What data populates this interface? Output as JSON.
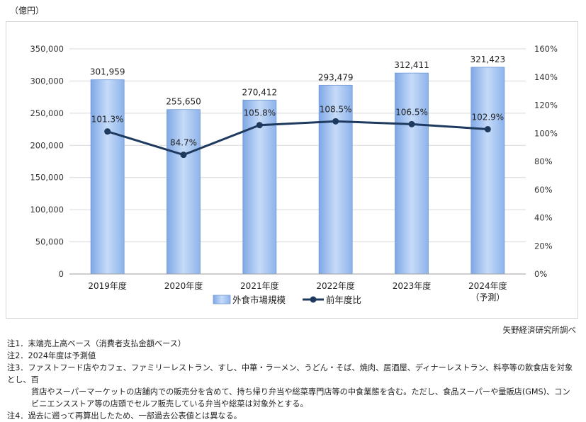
{
  "unit_label": "（億円）",
  "source": "矢野経済研究所調べ",
  "notes": [
    "注1．末端売上高ベース（消費者支払金額ベース）",
    "注2．2024年度は予測値",
    "注3．ファストフード店やカフェ、ファミリーレストラン、すし、中華・ラーメン、うどん・そば、焼肉、居酒屋、ディナーレストラン、料亭等の飲食店を対象とし、百",
    "貨店やスーパーマーケットの店舗内での販売分を含めて、持ち帰り弁当や総菜専門店等の中食業態を含む。ただし、食品スーパーや量販店(GMS)、コン",
    "ビニエンスストア等の店頭でセルフ販売している弁当や総菜は対象外とする。",
    "注4．過去に遡って再算出したため、一部過去公表値とは異なる。"
  ],
  "chart_data": {
    "type": "bar",
    "categories": [
      "2019年度",
      "2020年度",
      "2021年度",
      "2022年度",
      "2023年度",
      "2024年度"
    ],
    "category_sublabels": [
      "",
      "",
      "",
      "",
      "",
      "（予測）"
    ],
    "series": [
      {
        "name": "外食市場規模",
        "type": "bar",
        "axis": "left",
        "values": [
          301959,
          255650,
          270412,
          293479,
          312411,
          321423
        ],
        "labels": [
          "301,959",
          "255,650",
          "270,412",
          "293,479",
          "312,411",
          "321,423"
        ],
        "color": "#9dc0ef"
      },
      {
        "name": "前年度比",
        "type": "line",
        "axis": "right",
        "values": [
          101.3,
          84.7,
          105.8,
          108.5,
          106.5,
          102.9
        ],
        "labels": [
          "101.3%",
          "84.7%",
          "105.8%",
          "108.5%",
          "106.5%",
          "102.9%"
        ],
        "color": "#1f3a5f"
      }
    ],
    "y_left": {
      "min": 0,
      "max": 350000,
      "ticks": [
        0,
        50000,
        100000,
        150000,
        200000,
        250000,
        300000,
        350000
      ],
      "tick_labels": [
        "0",
        "50,000",
        "100,000",
        "150,000",
        "200,000",
        "250,000",
        "300,000",
        "350,000"
      ]
    },
    "y_right": {
      "min": 0,
      "max": 160,
      "ticks": [
        0,
        20,
        40,
        60,
        80,
        100,
        120,
        140,
        160
      ],
      "tick_labels": [
        "0%",
        "20%",
        "40%",
        "60%",
        "80%",
        "100%",
        "120%",
        "140%",
        "160%"
      ]
    },
    "grid": true,
    "legend": "bottom"
  }
}
